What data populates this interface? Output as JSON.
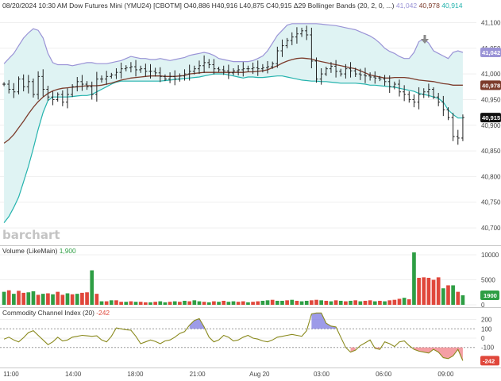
{
  "header": {
    "title_prefix": "08/20/2024 10:30 AM Dow Futures Mini (YMU24) [CBOTM] ",
    "ohlc": "O40,886 H40,916 L40,875 C40,915 Δ29",
    "indicator": " Bollinger Bands  (20, 2, 0, ...) ",
    "bb_upper": "41,042",
    "bb_middle": "40,978",
    "bb_lower": "40,914"
  },
  "brand": "barchart",
  "colors": {
    "upper_band": "#9a93d6",
    "lower_band": "#24b3ad",
    "band_fill": "#dff3f3",
    "middle_band": "#7c3b2b",
    "price": "#222222",
    "vol_up": "#2e9e44",
    "vol_down": "#e0473b",
    "cci_line": "#8a8a1e",
    "cci_pos_fill": "#7c7ae0",
    "cci_neg_fill": "#f07f86"
  },
  "time_labels": [
    "11:00",
    "14:00",
    "18:00",
    "21:00",
    "Aug 20",
    "03:00",
    "06:00",
    "09:00"
  ],
  "chart_data": [
    {
      "type": "line",
      "name": "price",
      "y_ticks": [
        "41,100",
        "41,050",
        "41,000",
        "40,950",
        "40,900",
        "40,850",
        "40,800",
        "40,750",
        "40,700"
      ],
      "ylim": [
        40680,
        41110
      ],
      "value_badges": [
        {
          "label": "41,042",
          "value": 41042,
          "color": "#9a93d6"
        },
        {
          "label": "40,978",
          "value": 40978,
          "color": "#7c3b2b"
        },
        {
          "label": "40,915",
          "value": 40915,
          "color": "#111111"
        }
      ],
      "close": [
        40980,
        40970,
        40965,
        40990,
        40975,
        40985,
        40960,
        40995,
        40970,
        40955,
        40950,
        40960,
        40945,
        40960,
        40975,
        40985,
        40980,
        40975,
        40960,
        40990,
        40990,
        40995,
        40998,
        41003,
        41010,
        41012,
        41014,
        41008,
        41010,
        41005,
        41005,
        41002,
        40995,
        40990,
        40995,
        40990,
        40996,
        41000,
        41005,
        41010,
        41016,
        41022,
        41018,
        41010,
        41008,
        41006,
        41002,
        41006,
        41008,
        41010,
        41010,
        41012,
        41010,
        41012,
        41014,
        41020,
        41045,
        41055,
        41065,
        41072,
        41078,
        41084,
        41076,
        41025,
        40990,
        41000,
        41010,
        41015,
        41005,
        41000,
        41010,
        41006,
        41000,
        40998,
        40996,
        40994,
        40992,
        40990,
        40985,
        40975,
        40980,
        40965,
        40960,
        40950,
        40945,
        40960,
        40965,
        40970,
        40955,
        40945,
        40930,
        40915,
        40878,
        40875,
        40915
      ],
      "bb_upper": [
        41020,
        41030,
        41040,
        41055,
        41070,
        41080,
        41088,
        41085,
        41070,
        41040,
        41022,
        41018,
        41018,
        41018,
        41016,
        41018,
        41020,
        41022,
        41022,
        41020,
        41020,
        41020,
        41022,
        41024,
        41026,
        41030,
        41034,
        41032,
        41030,
        41030,
        41028,
        41028,
        41030,
        41028,
        41026,
        41028,
        41030,
        41032,
        41036,
        41038,
        41040,
        41042,
        41040,
        41036,
        41030,
        41028,
        41026,
        41024,
        41024,
        41024,
        41024,
        41026,
        41030,
        41035,
        41045,
        41060,
        41075,
        41085,
        41095,
        41098,
        41098,
        41098,
        41098,
        41098,
        41098,
        41097,
        41096,
        41095,
        41094,
        41092,
        41090,
        41088,
        41086,
        41082,
        41078,
        41074,
        41068,
        41060,
        41050,
        41044,
        41040,
        41034,
        41030,
        41030,
        41042,
        41063,
        41068,
        41060,
        41045,
        41040,
        41035,
        41030,
        41042,
        41045,
        41042
      ],
      "bb_middle": [
        40865,
        40872,
        40882,
        40895,
        40908,
        40922,
        40935,
        40946,
        40955,
        40962,
        40967,
        40970,
        40972,
        40973,
        40974,
        40975,
        40976,
        40977,
        40977,
        40977,
        40978,
        40980,
        40982,
        40985,
        40988,
        40990,
        40992,
        40993,
        40994,
        40995,
        40996,
        40996,
        40996,
        40995,
        40995,
        40995,
        40996,
        40997,
        41000,
        41001,
        41002,
        41003,
        41003,
        41003,
        41003,
        41003,
        41003,
        41003,
        41003,
        41003,
        41004,
        41004,
        41005,
        41006,
        41008,
        41012,
        41016,
        41021,
        41025,
        41028,
        41030,
        41031,
        41030,
        41029,
        41026,
        41024,
        41022,
        41020,
        41018,
        41016,
        41014,
        41012,
        41010,
        41006,
        41002,
        40998,
        40996,
        40994,
        40992,
        40992,
        40993,
        40993,
        40993,
        40992,
        40990,
        40988,
        40987,
        40986,
        40985,
        40983,
        40981,
        40980,
        40978,
        40978,
        40978
      ],
      "bb_lower": [
        40710,
        40722,
        40740,
        40760,
        40790,
        40820,
        40855,
        40892,
        40925,
        40948,
        40955,
        40955,
        40955,
        40955,
        40956,
        40957,
        40958,
        40958,
        40960,
        40965,
        40970,
        40975,
        40980,
        40984,
        40986,
        40986,
        40986,
        40986,
        40986,
        40986,
        40986,
        40986,
        40986,
        40987,
        40988,
        40989,
        40990,
        40991,
        40992,
        40993,
        40994,
        40996,
        40998,
        41000,
        41000,
        41000,
        40998,
        40996,
        40994,
        40992,
        40994,
        40994,
        40993,
        40993,
        40994,
        40995,
        40996,
        40996,
        40994,
        40992,
        40990,
        40988,
        40987,
        40986,
        40986,
        40985,
        40985,
        40984,
        40983,
        40982,
        40982,
        40982,
        40982,
        40981,
        40980,
        40978,
        40978,
        40977,
        40976,
        40975,
        40974,
        40972,
        40970,
        40968,
        40966,
        40962,
        40960,
        40958,
        40955,
        40952,
        40945,
        40930,
        40921,
        40914,
        40914
      ]
    },
    {
      "type": "bar",
      "name": "volume",
      "title": "Volume",
      "subtitle": "(LikeMain)",
      "last_label": "1,900",
      "badge_label": "1900",
      "y_ticks": [
        "10000",
        "5000",
        "0"
      ],
      "ylim": [
        0,
        10800
      ],
      "values": [
        2600,
        2900,
        2200,
        2800,
        2400,
        2500,
        2700,
        2000,
        2200,
        2300,
        2100,
        2600,
        2000,
        2300,
        2100,
        2200,
        2400,
        2500,
        6900,
        2200,
        700,
        700,
        900,
        900,
        600,
        600,
        700,
        600,
        600,
        500,
        500,
        600,
        700,
        500,
        600,
        700,
        600,
        800,
        700,
        900,
        700,
        600,
        500,
        700,
        600,
        800,
        600,
        700,
        600,
        700,
        500,
        600,
        700,
        800,
        900,
        1000,
        800,
        800,
        900,
        1000,
        800,
        700,
        800,
        900,
        1000,
        900,
        800,
        700,
        900,
        800,
        700,
        800,
        900,
        700,
        800,
        900,
        700,
        800,
        700,
        900,
        1000,
        1200,
        1400,
        1100,
        10500,
        5400,
        5500,
        5400,
        5000,
        5500,
        3300,
        3900,
        3900,
        2600,
        1900
      ],
      "up": [
        1,
        0,
        1,
        0,
        0,
        1,
        1,
        0,
        1,
        0,
        1,
        0,
        0,
        1,
        0,
        1,
        0,
        0,
        1,
        0,
        1,
        0,
        1,
        0,
        0,
        1,
        0,
        1,
        0,
        0,
        1,
        0,
        1,
        1,
        0,
        1,
        0,
        1,
        0,
        1,
        1,
        0,
        1,
        0,
        1,
        0,
        1,
        1,
        0,
        0,
        1,
        0,
        0,
        1,
        1,
        0,
        1,
        1,
        0,
        1,
        0,
        1,
        1,
        0,
        0,
        1,
        0,
        1,
        0,
        1,
        0,
        1,
        0,
        1,
        0,
        0,
        1,
        0,
        1,
        0,
        0,
        0,
        1,
        0,
        1,
        0,
        0,
        0,
        0,
        0,
        1,
        0,
        1,
        0,
        1
      ]
    },
    {
      "type": "area",
      "name": "cci",
      "title": "Commodity Channel Index",
      "subtitle": "(20)",
      "last_label": "-242",
      "badge_label": "-242",
      "y_ticks": [
        "200",
        "100",
        "0",
        "-100"
      ],
      "ylim": [
        -290,
        290
      ],
      "values": [
        -10,
        10,
        -20,
        -40,
        5,
        60,
        80,
        30,
        -20,
        -70,
        -40,
        10,
        -30,
        -20,
        10,
        20,
        30,
        25,
        20,
        25,
        -20,
        -40,
        20,
        110,
        100,
        90,
        85,
        20,
        -60,
        -40,
        -20,
        -35,
        -60,
        -30,
        -20,
        10,
        50,
        70,
        140,
        190,
        210,
        120,
        10,
        -40,
        -20,
        30,
        10,
        -30,
        -20,
        10,
        30,
        0,
        -10,
        -30,
        -40,
        -20,
        10,
        20,
        30,
        40,
        30,
        20,
        80,
        260,
        270,
        270,
        160,
        130,
        120,
        10,
        -100,
        -150,
        -130,
        -80,
        -50,
        -20,
        -110,
        -120,
        -40,
        -60,
        -90,
        -40,
        -30,
        -80,
        -120,
        -140,
        -150,
        -160,
        -120,
        -150,
        -210,
        -220,
        -190,
        -120,
        -242
      ]
    }
  ]
}
